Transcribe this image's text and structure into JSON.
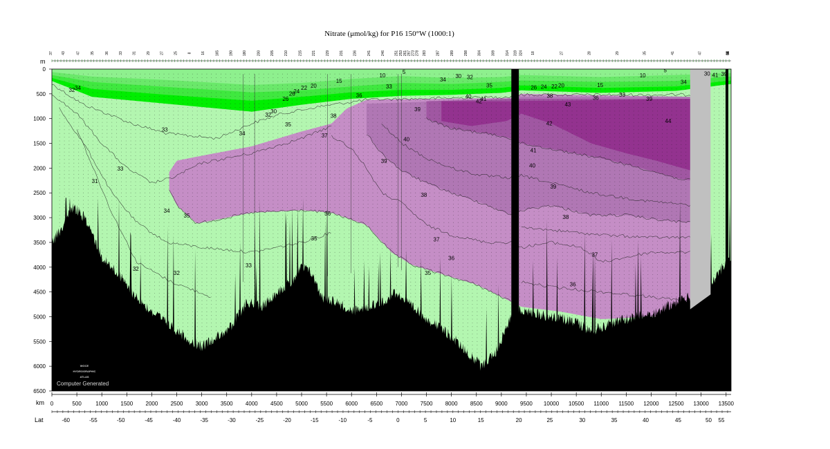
{
  "chart_data": {
    "type": "heatmap",
    "title": "Nitrate (μmol/kg) for P16 150°W (1000:1)",
    "depth_unit": "m",
    "distance_unit": "km",
    "lat_label": "Lat",
    "credit": "Computer Generated",
    "logo_lines": [
      "WOCE",
      "HYDROGRAPHIC",
      "ATLAS"
    ],
    "ylim": [
      6500,
      0
    ],
    "xlim": [
      0,
      13600
    ],
    "depth_ticks": [
      0,
      500,
      1000,
      1500,
      2000,
      2500,
      3000,
      3500,
      4000,
      4500,
      5000,
      5500,
      6000,
      6500
    ],
    "km_ticks": [
      0,
      500,
      1000,
      1500,
      2000,
      2500,
      3000,
      3500,
      4000,
      4500,
      5000,
      5500,
      6000,
      6500,
      7000,
      7500,
      8000,
      8500,
      9000,
      9500,
      10000,
      10500,
      11000,
      11500,
      12000,
      12500,
      13000,
      13500
    ],
    "lat_ticks": [
      {
        "lat": -60,
        "km": 280
      },
      {
        "lat": -55,
        "km": 830
      },
      {
        "lat": -50,
        "km": 1380
      },
      {
        "lat": -45,
        "km": 1940
      },
      {
        "lat": -40,
        "km": 2500
      },
      {
        "lat": -35,
        "km": 3050
      },
      {
        "lat": -30,
        "km": 3600
      },
      {
        "lat": -25,
        "km": 4160
      },
      {
        "lat": -20,
        "km": 4710
      },
      {
        "lat": -15,
        "km": 5260
      },
      {
        "lat": -10,
        "km": 5820
      },
      {
        "lat": -5,
        "km": 6370
      },
      {
        "lat": 0,
        "km": 6930
      },
      {
        "lat": 5,
        "km": 7480
      },
      {
        "lat": 10,
        "km": 8030
      },
      {
        "lat": 15,
        "km": 8590
      },
      {
        "lat": 20,
        "km": 9350
      },
      {
        "lat": 25,
        "km": 9970
      },
      {
        "lat": 30,
        "km": 10620
      },
      {
        "lat": 35,
        "km": 11260
      },
      {
        "lat": 40,
        "km": 11890
      },
      {
        "lat": 45,
        "km": 12540
      },
      {
        "lat": 50,
        "km": 13150
      },
      {
        "lat": 55,
        "km": 13800
      }
    ],
    "station_labels": [
      {
        "label": "37",
        "km": 0
      },
      {
        "label": "43",
        "km": 250
      },
      {
        "label": "47",
        "km": 550
      },
      {
        "label": "35",
        "km": 830
      },
      {
        "label": "36",
        "km": 1120
      },
      {
        "label": "33",
        "km": 1400
      },
      {
        "label": "31",
        "km": 1670
      },
      {
        "label": "29",
        "km": 1950
      },
      {
        "label": "27",
        "km": 2220
      },
      {
        "label": "25",
        "km": 2500
      },
      {
        "label": "8",
        "km": 2780
      },
      {
        "label": "16",
        "km": 3050
      },
      {
        "label": "165",
        "km": 3330
      },
      {
        "label": "190",
        "km": 3610
      },
      {
        "label": "180",
        "km": 3880
      },
      {
        "label": "200",
        "km": 4160
      },
      {
        "label": "205",
        "km": 4430
      },
      {
        "label": "210",
        "km": 4710
      },
      {
        "label": "215",
        "km": 4990
      },
      {
        "label": "221",
        "km": 5260
      },
      {
        "label": "229",
        "km": 5540
      },
      {
        "label": "231",
        "km": 5820
      },
      {
        "label": "236",
        "km": 6090
      },
      {
        "label": "241",
        "km": 6370
      },
      {
        "label": "246",
        "km": 6650
      },
      {
        "label": "251",
        "km": 6920
      },
      {
        "label": "253",
        "km": 7010
      },
      {
        "label": "261",
        "km": 7090
      },
      {
        "label": "267",
        "km": 7170
      },
      {
        "label": "273",
        "km": 7250
      },
      {
        "label": "278",
        "km": 7330
      },
      {
        "label": "283",
        "km": 7480
      },
      {
        "label": "287",
        "km": 7750
      },
      {
        "label": "289",
        "km": 8030
      },
      {
        "label": "298",
        "km": 8310
      },
      {
        "label": "304",
        "km": 8580
      },
      {
        "label": "309",
        "km": 8860
      },
      {
        "label": "314",
        "km": 9140
      },
      {
        "label": "319",
        "km": 9300
      },
      {
        "label": "324",
        "km": 9410
      },
      {
        "label": "18",
        "km": 9650
      },
      {
        "label": "27",
        "km": 10230
      },
      {
        "label": "28",
        "km": 10780
      },
      {
        "label": "29",
        "km": 11340
      },
      {
        "label": "35",
        "km": 11890
      },
      {
        "label": "41",
        "km": 12450
      },
      {
        "label": "47",
        "km": 13000
      },
      {
        "label": "57",
        "km": 13550
      },
      {
        "label": "85",
        "km": 14100
      },
      {
        "label": "68",
        "km": 14480
      },
      {
        "label": "64",
        "km": 14540
      }
    ],
    "gap_km": [
      12780,
      13190
    ],
    "ridge_km": [
      9200,
      9350
    ],
    "color_scale": [
      {
        "max": 33,
        "color": "#b3f6b0"
      },
      {
        "max": 35.5,
        "color": "#e4bde0"
      },
      {
        "max": 38.5,
        "color": "#c58ec6"
      },
      {
        "max": 40,
        "color": "#b077b4"
      },
      {
        "max": 42,
        "color": "#a057a2"
      },
      {
        "max": 50,
        "color": "#93328f"
      }
    ],
    "surface_colors": [
      "#00ee00",
      "#3fe83f",
      "#6ae86a",
      "#8ef08e"
    ],
    "contour_labels": [
      {
        "value": "32",
        "km": 400,
        "depth": 460
      },
      {
        "value": "34",
        "km": 520,
        "depth": 420
      },
      {
        "value": "31",
        "km": 860,
        "depth": 2300
      },
      {
        "value": "33",
        "km": 1370,
        "depth": 2050
      },
      {
        "value": "33",
        "km": 2260,
        "depth": 1260
      },
      {
        "value": "34",
        "km": 2300,
        "depth": 2900
      },
      {
        "value": "35",
        "km": 2700,
        "depth": 3000
      },
      {
        "value": "32",
        "km": 1680,
        "depth": 4070
      },
      {
        "value": "32",
        "km": 2500,
        "depth": 4160
      },
      {
        "value": "34",
        "km": 3810,
        "depth": 1340
      },
      {
        "value": "32",
        "km": 4330,
        "depth": 960
      },
      {
        "value": "30",
        "km": 4440,
        "depth": 890
      },
      {
        "value": "26",
        "km": 4680,
        "depth": 640
      },
      {
        "value": "26",
        "km": 4810,
        "depth": 540
      },
      {
        "value": "24",
        "km": 4900,
        "depth": 490
      },
      {
        "value": "22",
        "km": 5050,
        "depth": 420
      },
      {
        "value": "20",
        "km": 5240,
        "depth": 380
      },
      {
        "value": "35",
        "km": 4730,
        "depth": 1160
      },
      {
        "value": "37",
        "km": 5460,
        "depth": 1380
      },
      {
        "value": "38",
        "km": 5640,
        "depth": 980
      },
      {
        "value": "15",
        "km": 5750,
        "depth": 280
      },
      {
        "value": "36",
        "km": 6150,
        "depth": 570
      },
      {
        "value": "10",
        "km": 6620,
        "depth": 170
      },
      {
        "value": "33",
        "km": 6750,
        "depth": 390
      },
      {
        "value": "5",
        "km": 7050,
        "depth": 100
      },
      {
        "value": "39",
        "km": 7320,
        "depth": 850
      },
      {
        "value": "40",
        "km": 7100,
        "depth": 1460
      },
      {
        "value": "39",
        "km": 6650,
        "depth": 1900
      },
      {
        "value": "38",
        "km": 7450,
        "depth": 2580
      },
      {
        "value": "36",
        "km": 5520,
        "depth": 2960
      },
      {
        "value": "35",
        "km": 5250,
        "depth": 3460
      },
      {
        "value": "37",
        "km": 7700,
        "depth": 3480
      },
      {
        "value": "36",
        "km": 8000,
        "depth": 3860
      },
      {
        "value": "35",
        "km": 7530,
        "depth": 4160
      },
      {
        "value": "33",
        "km": 3940,
        "depth": 4000
      },
      {
        "value": "34",
        "km": 7830,
        "depth": 250
      },
      {
        "value": "30",
        "km": 8140,
        "depth": 180
      },
      {
        "value": "32",
        "km": 8370,
        "depth": 200
      },
      {
        "value": "35",
        "km": 8760,
        "depth": 370
      },
      {
        "value": "40",
        "km": 8340,
        "depth": 590
      },
      {
        "value": "42",
        "km": 8550,
        "depth": 690
      },
      {
        "value": "41",
        "km": 8640,
        "depth": 640
      },
      {
        "value": "26",
        "km": 9650,
        "depth": 410
      },
      {
        "value": "24",
        "km": 9850,
        "depth": 400
      },
      {
        "value": "22",
        "km": 10060,
        "depth": 390
      },
      {
        "value": "20",
        "km": 10200,
        "depth": 370
      },
      {
        "value": "38",
        "km": 9970,
        "depth": 580
      },
      {
        "value": "43",
        "km": 10330,
        "depth": 750
      },
      {
        "value": "42",
        "km": 9960,
        "depth": 1140
      },
      {
        "value": "41",
        "km": 9640,
        "depth": 1680
      },
      {
        "value": "40",
        "km": 9620,
        "depth": 1990
      },
      {
        "value": "39",
        "km": 10040,
        "depth": 2410
      },
      {
        "value": "38",
        "km": 10290,
        "depth": 3030
      },
      {
        "value": "37",
        "km": 10870,
        "depth": 3790
      },
      {
        "value": "36",
        "km": 10430,
        "depth": 4390
      },
      {
        "value": "15",
        "km": 10980,
        "depth": 360
      },
      {
        "value": "36",
        "km": 10890,
        "depth": 620
      },
      {
        "value": "33",
        "km": 11420,
        "depth": 560
      },
      {
        "value": "10",
        "km": 11830,
        "depth": 170
      },
      {
        "value": "5",
        "km": 12280,
        "depth": 60
      },
      {
        "value": "39",
        "km": 11960,
        "depth": 640
      },
      {
        "value": "44",
        "km": 12340,
        "depth": 1090
      },
      {
        "value": "34",
        "km": 12650,
        "depth": 300
      },
      {
        "value": "30",
        "km": 13120,
        "depth": 130
      },
      {
        "value": "41",
        "km": 13280,
        "depth": 160
      },
      {
        "value": "39",
        "km": 13460,
        "depth": 140
      }
    ]
  }
}
